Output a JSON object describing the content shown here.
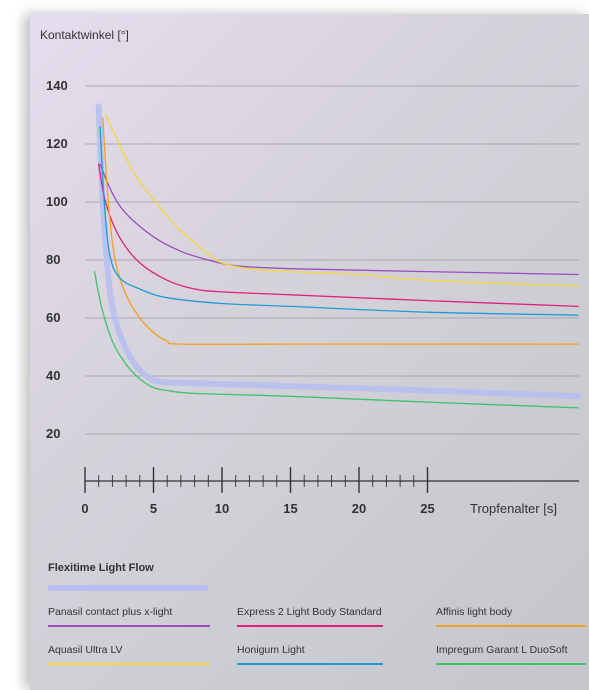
{
  "chart_data": {
    "type": "line",
    "title": "",
    "ylabel": "Kontaktwinkel [°]",
    "xlabel": "Tropfenalter [s]",
    "ylim": [
      0,
      140
    ],
    "xlim": [
      0,
      36
    ],
    "yticks": [
      "20",
      "40",
      "60",
      "80",
      "100",
      "120",
      "140"
    ],
    "xticks": [
      "0",
      "5",
      "10",
      "15",
      "20",
      "25"
    ],
    "grid": true,
    "featured_series": {
      "name": "Flexitime Light Flow",
      "color": "#b8bff0"
    },
    "series": [
      {
        "name": "Flexitime Light Flow",
        "color": "#b8bff0",
        "featured": true,
        "points": [
          [
            1.0,
            133
          ],
          [
            1.3,
            100
          ],
          [
            1.8,
            70
          ],
          [
            2.5,
            55
          ],
          [
            3.5,
            45
          ],
          [
            4.5,
            40
          ],
          [
            5.5,
            38
          ],
          [
            8,
            37.5
          ],
          [
            15,
            36.5
          ],
          [
            25,
            35
          ],
          [
            36,
            33
          ]
        ]
      },
      {
        "name": "Panasil contact plus x-light",
        "color": "#9a4fc0",
        "points": [
          [
            1.1,
            113
          ],
          [
            2,
            103
          ],
          [
            3,
            96
          ],
          [
            5,
            88
          ],
          [
            7,
            83
          ],
          [
            9,
            80
          ],
          [
            11,
            78
          ],
          [
            15,
            77
          ],
          [
            25,
            76
          ],
          [
            36,
            75
          ]
        ]
      },
      {
        "name": "Express 2 Light Body Standard",
        "color": "#e0207a",
        "points": [
          [
            1.0,
            113
          ],
          [
            1.5,
            100
          ],
          [
            2.5,
            88
          ],
          [
            4,
            79
          ],
          [
            6,
            73
          ],
          [
            8,
            70
          ],
          [
            10,
            69
          ],
          [
            15,
            68
          ],
          [
            25,
            66
          ],
          [
            36,
            64
          ]
        ]
      },
      {
        "name": "Affinis light body",
        "color": "#f2a020",
        "points": [
          [
            1.3,
            129
          ],
          [
            1.7,
            100
          ],
          [
            2.2,
            80
          ],
          [
            3,
            68
          ],
          [
            4,
            60
          ],
          [
            5,
            55
          ],
          [
            6,
            52
          ],
          [
            7,
            51
          ],
          [
            15,
            51
          ],
          [
            25,
            51
          ],
          [
            36,
            51
          ]
        ]
      },
      {
        "name": "Aquasil Ultra LV",
        "color": "#f3d83a",
        "points": [
          [
            1.5,
            130
          ],
          [
            2,
            125
          ],
          [
            3,
            115
          ],
          [
            4,
            107
          ],
          [
            5,
            101
          ],
          [
            6,
            95
          ],
          [
            7,
            90
          ],
          [
            8,
            86
          ],
          [
            9,
            82
          ],
          [
            10,
            79
          ],
          [
            12,
            77
          ],
          [
            15,
            76
          ],
          [
            20,
            75
          ],
          [
            25,
            73
          ],
          [
            36,
            71
          ]
        ]
      },
      {
        "name": "Honigum Light",
        "color": "#1e9bd7",
        "points": [
          [
            1.1,
            126
          ],
          [
            1.4,
            100
          ],
          [
            1.8,
            82
          ],
          [
            2.5,
            74
          ],
          [
            4,
            70
          ],
          [
            6,
            67
          ],
          [
            10,
            65
          ],
          [
            15,
            64
          ],
          [
            25,
            62
          ],
          [
            36,
            61
          ]
        ]
      },
      {
        "name": "Impregum Garant L DuoSoft",
        "color": "#3cc46c",
        "points": [
          [
            0.7,
            76
          ],
          [
            1.2,
            64
          ],
          [
            2,
            52
          ],
          [
            3,
            44
          ],
          [
            4,
            39
          ],
          [
            5,
            36
          ],
          [
            6,
            35
          ],
          [
            8,
            34
          ],
          [
            15,
            33
          ],
          [
            25,
            31
          ],
          [
            36,
            29
          ]
        ]
      }
    ],
    "legend": [
      {
        "label": "Panasil contact plus x-light",
        "color": "#9a4fc0"
      },
      {
        "label": "Express 2 Light Body Standard",
        "color": "#e0207a"
      },
      {
        "label": "Affinis light body",
        "color": "#f2a020"
      },
      {
        "label": "Aquasil Ultra LV",
        "color": "#f3d83a"
      },
      {
        "label": "Honigum Light",
        "color": "#1e9bd7"
      },
      {
        "label": "Impregum Garant L DuoSoft",
        "color": "#3cc46c"
      }
    ]
  }
}
